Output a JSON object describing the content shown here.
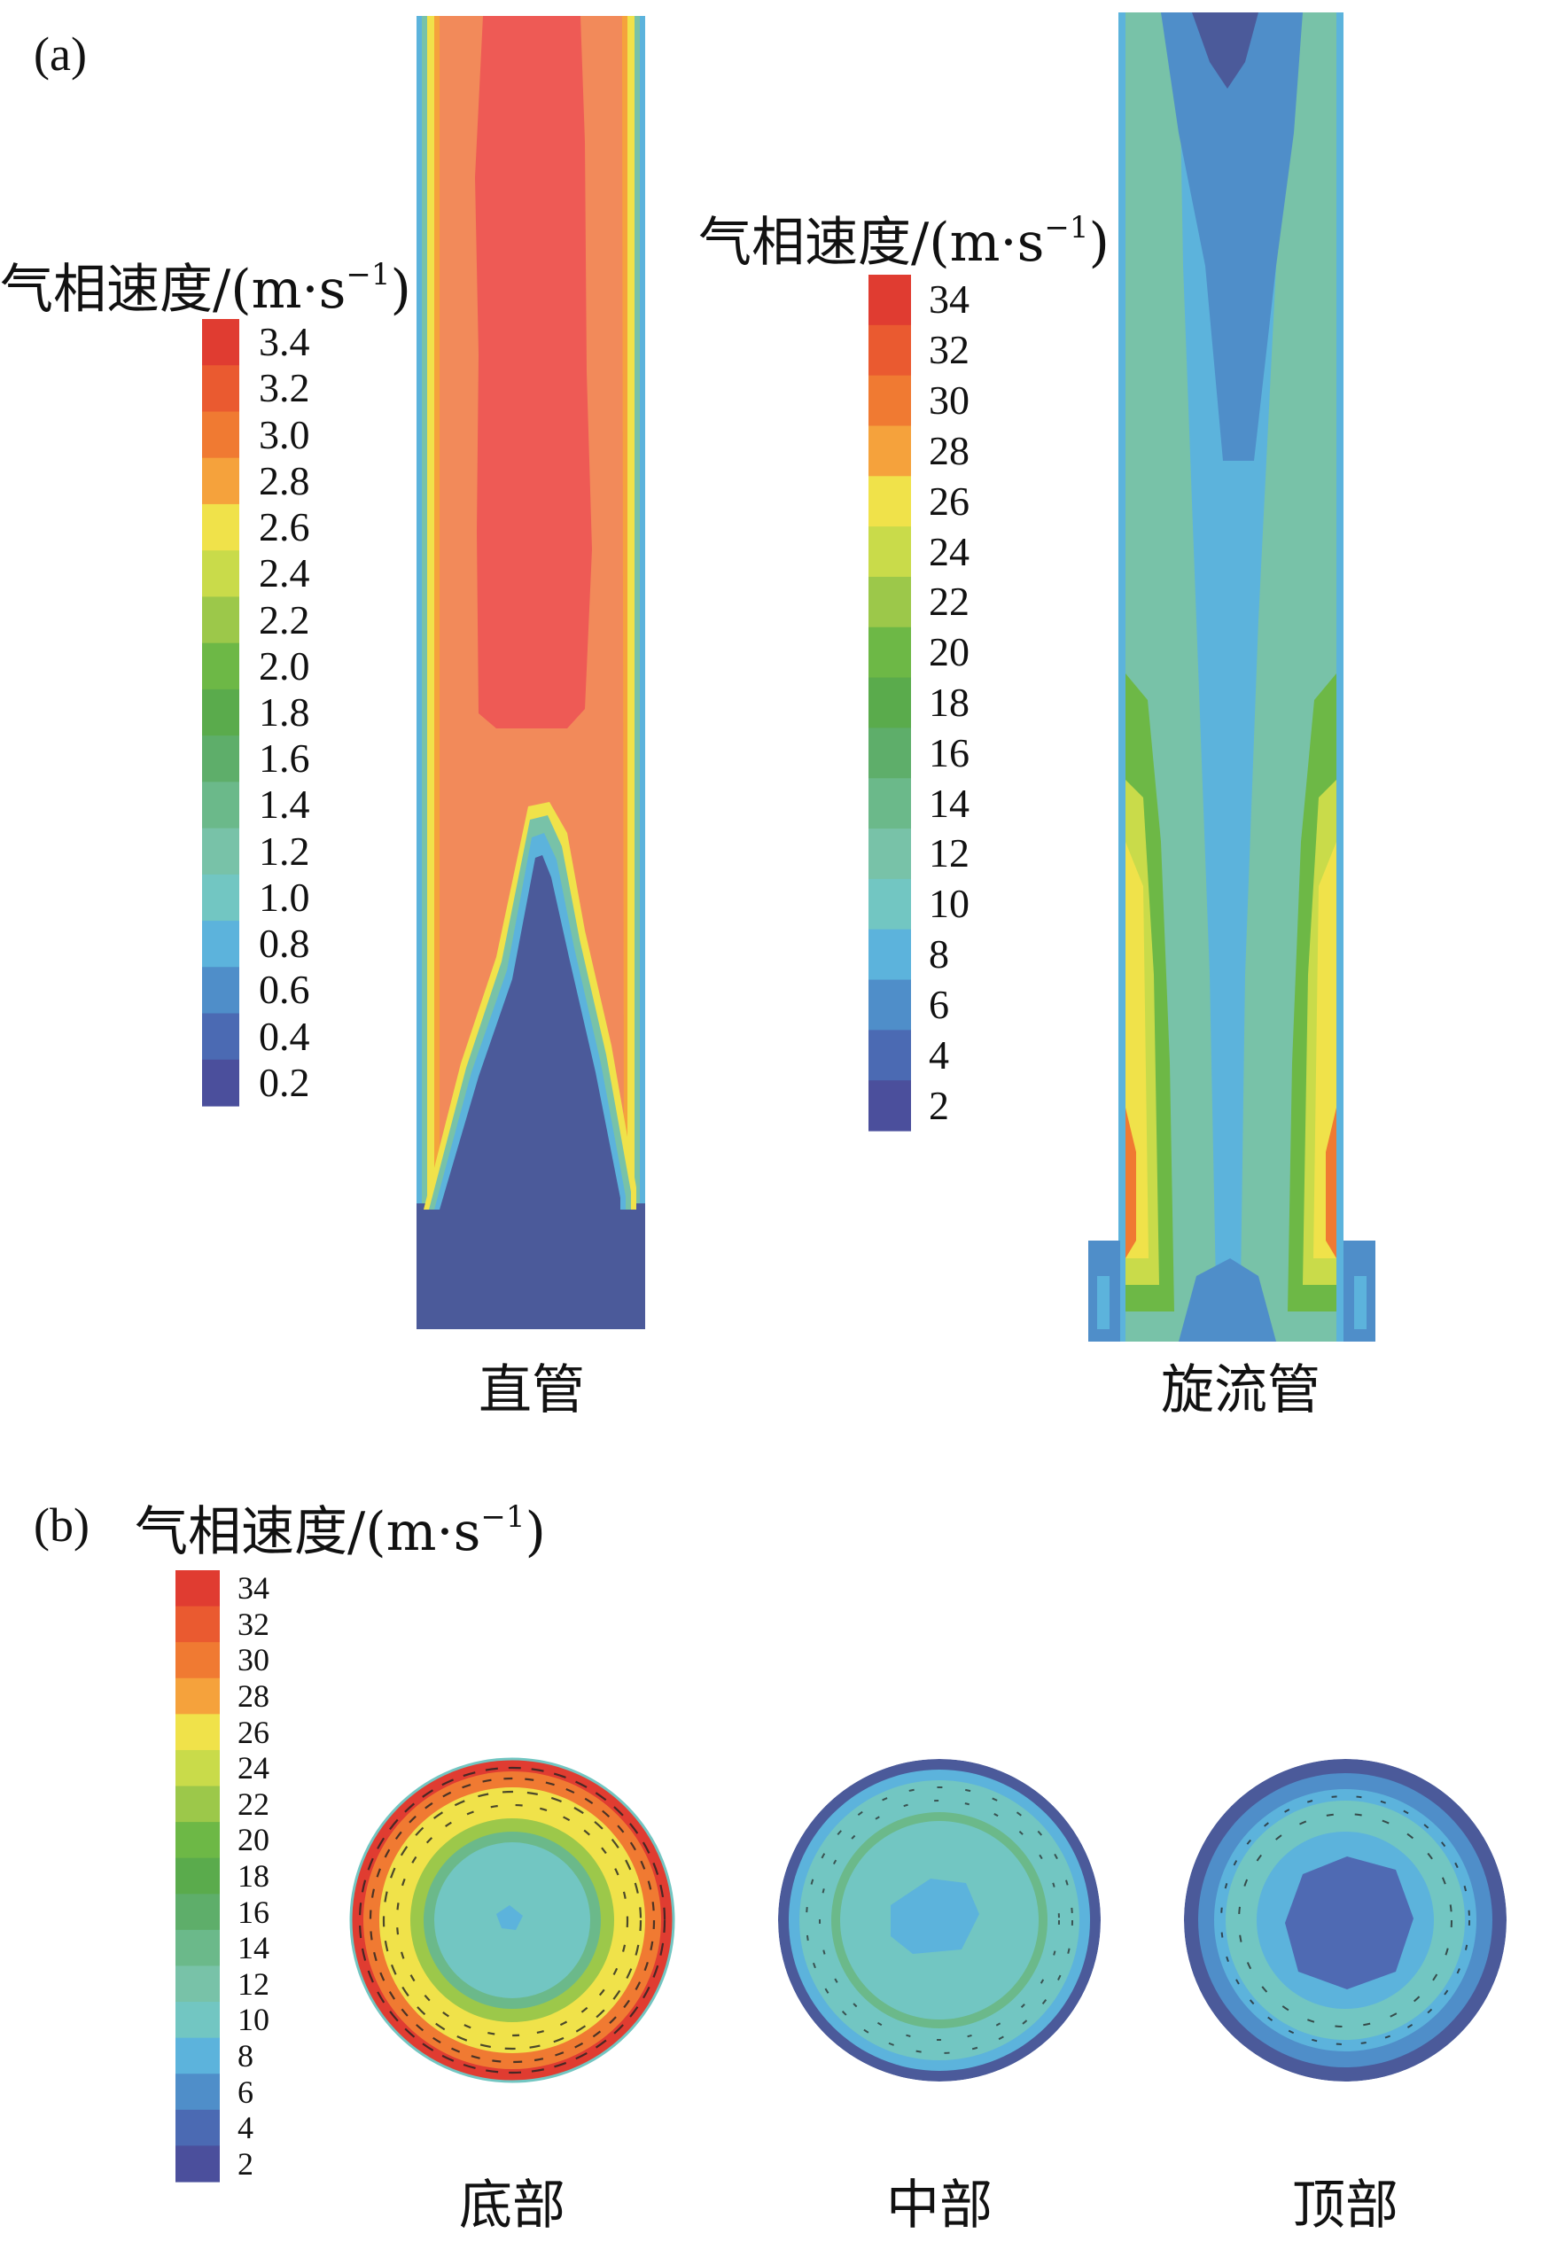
{
  "panel_a": {
    "label": "(a)",
    "left_legend": {
      "title": "气相速度/(m·s",
      "title_sup": "−1",
      "title_close": ")",
      "ticks": [
        "3.4",
        "3.2",
        "3.0",
        "2.8",
        "2.6",
        "2.4",
        "2.2",
        "2.0",
        "1.8",
        "1.6",
        "1.4",
        "1.2",
        "1.0",
        "0.8",
        "0.6",
        "0.4",
        "0.2"
      ]
    },
    "right_legend": {
      "title": "气相速度/(m·s",
      "title_sup": "−1",
      "title_close": ")",
      "ticks": [
        "34",
        "32",
        "30",
        "28",
        "26",
        "24",
        "22",
        "20",
        "18",
        "16",
        "14",
        "12",
        "10",
        "8",
        "6",
        "4",
        "2"
      ]
    },
    "captions": {
      "straight": "直管",
      "swirl": "旋流管"
    }
  },
  "panel_b": {
    "label": "(b)",
    "legend": {
      "title": "气相速度/(m·s",
      "title_sup": "−1",
      "title_close": ")",
      "ticks": [
        "34",
        "32",
        "30",
        "28",
        "26",
        "24",
        "22",
        "20",
        "18",
        "16",
        "14",
        "12",
        "10",
        "8",
        "6",
        "4",
        "2"
      ]
    },
    "captions": {
      "bottom": "底部",
      "middle": "中部",
      "top": "顶部"
    }
  },
  "colors": {
    "scale": [
      "#e03c31",
      "#ea5a30",
      "#f07a32",
      "#f5a23c",
      "#f0e24a",
      "#c9db4a",
      "#9cc84a",
      "#6db846",
      "#5aab4c",
      "#5eae6a",
      "#6bb98a",
      "#78c2a8",
      "#72c6c2",
      "#5cb3dc",
      "#4f8ec9",
      "#4b6ab3",
      "#4b4f9c"
    ]
  }
}
